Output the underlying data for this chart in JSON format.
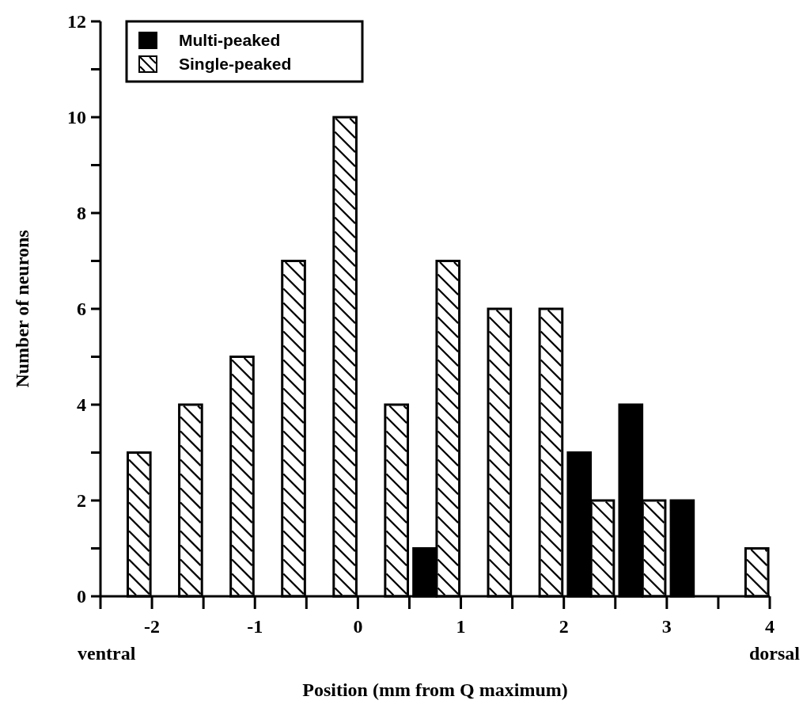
{
  "chart_data": {
    "type": "bar",
    "xlabel": "Position (mm from Q maximum)",
    "ylabel": "Number of neurons",
    "xlim": [
      -2.5,
      4
    ],
    "xticks": [
      {
        "value": -2.5,
        "label": null
      },
      -2,
      {
        "value": -1.5,
        "label": null
      },
      -1,
      {
        "value": -0.5,
        "label": null
      },
      0,
      {
        "value": 0.5,
        "label": null
      },
      1,
      {
        "value": 1.5,
        "label": null
      },
      2,
      {
        "value": 2.5,
        "label": null
      },
      3,
      {
        "value": 3.5,
        "label": null
      },
      4
    ],
    "ylim": [
      0,
      12
    ],
    "yticks": [
      0,
      {
        "value": 1,
        "label": null
      },
      2,
      {
        "value": 3,
        "label": null
      },
      4,
      {
        "value": 5,
        "label": null
      },
      6,
      {
        "value": 7,
        "label": null
      },
      8,
      {
        "value": 9,
        "label": null
      },
      10,
      {
        "value": 11,
        "label": null
      },
      12
    ],
    "series": [
      {
        "name": "Multi-peaked",
        "color": "#000000",
        "x": [
          0.65,
          2.15,
          2.65,
          3.15
        ],
        "values": [
          1,
          3,
          4,
          2
        ]
      },
      {
        "name": "Single-peaked",
        "color": "#ffffff",
        "x": [
          -2.125,
          -1.625,
          -1.125,
          -0.625,
          -0.125,
          0.375,
          0.875,
          1.375,
          1.875,
          2.375,
          2.875,
          3.875
        ],
        "values": [
          3,
          4,
          5,
          7,
          10,
          4,
          7,
          6,
          6,
          2,
          2,
          1
        ]
      }
    ],
    "annotations": [
      "ventral",
      "dorsal"
    ],
    "legend": "top left",
    "grid": false
  }
}
